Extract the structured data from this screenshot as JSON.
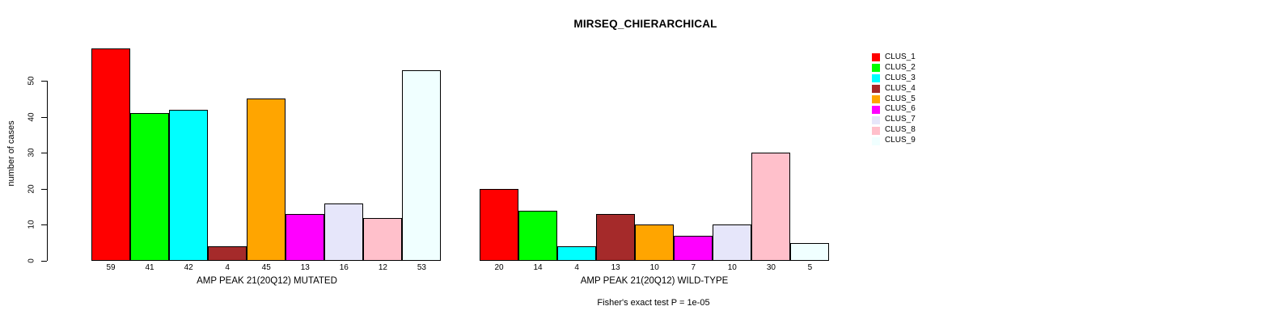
{
  "chart_data": {
    "type": "bar",
    "title": "MIRSEQ_CHIERARCHICAL",
    "ylabel": "number of cases",
    "xlabel": "",
    "y_ticks": [
      0,
      10,
      20,
      30,
      40,
      50
    ],
    "ylim": [
      0,
      59
    ],
    "grid": false,
    "legend_position": "right",
    "series_labels": [
      "CLUS_1",
      "CLUS_2",
      "CLUS_3",
      "CLUS_4",
      "CLUS_5",
      "CLUS_6",
      "CLUS_7",
      "CLUS_8",
      "CLUS_9"
    ],
    "colors": [
      "#FF0000",
      "#00FF00",
      "#00FFFF",
      "#A52A2A",
      "#FFA500",
      "#FF00FF",
      "#E6E6FA",
      "#FFC0CB",
      "#F0FFFF"
    ],
    "bar_border_color": "#000000",
    "groups": [
      {
        "label": "AMP PEAK 21(20Q12) MUTATED",
        "values": [
          59,
          41,
          42,
          4,
          45,
          13,
          16,
          12,
          53
        ]
      },
      {
        "label": "AMP PEAK 21(20Q12) WILD-TYPE",
        "values": [
          20,
          14,
          4,
          13,
          10,
          7,
          10,
          30,
          5
        ]
      }
    ],
    "annotation": "Fisher's exact test P = 1e-05"
  }
}
